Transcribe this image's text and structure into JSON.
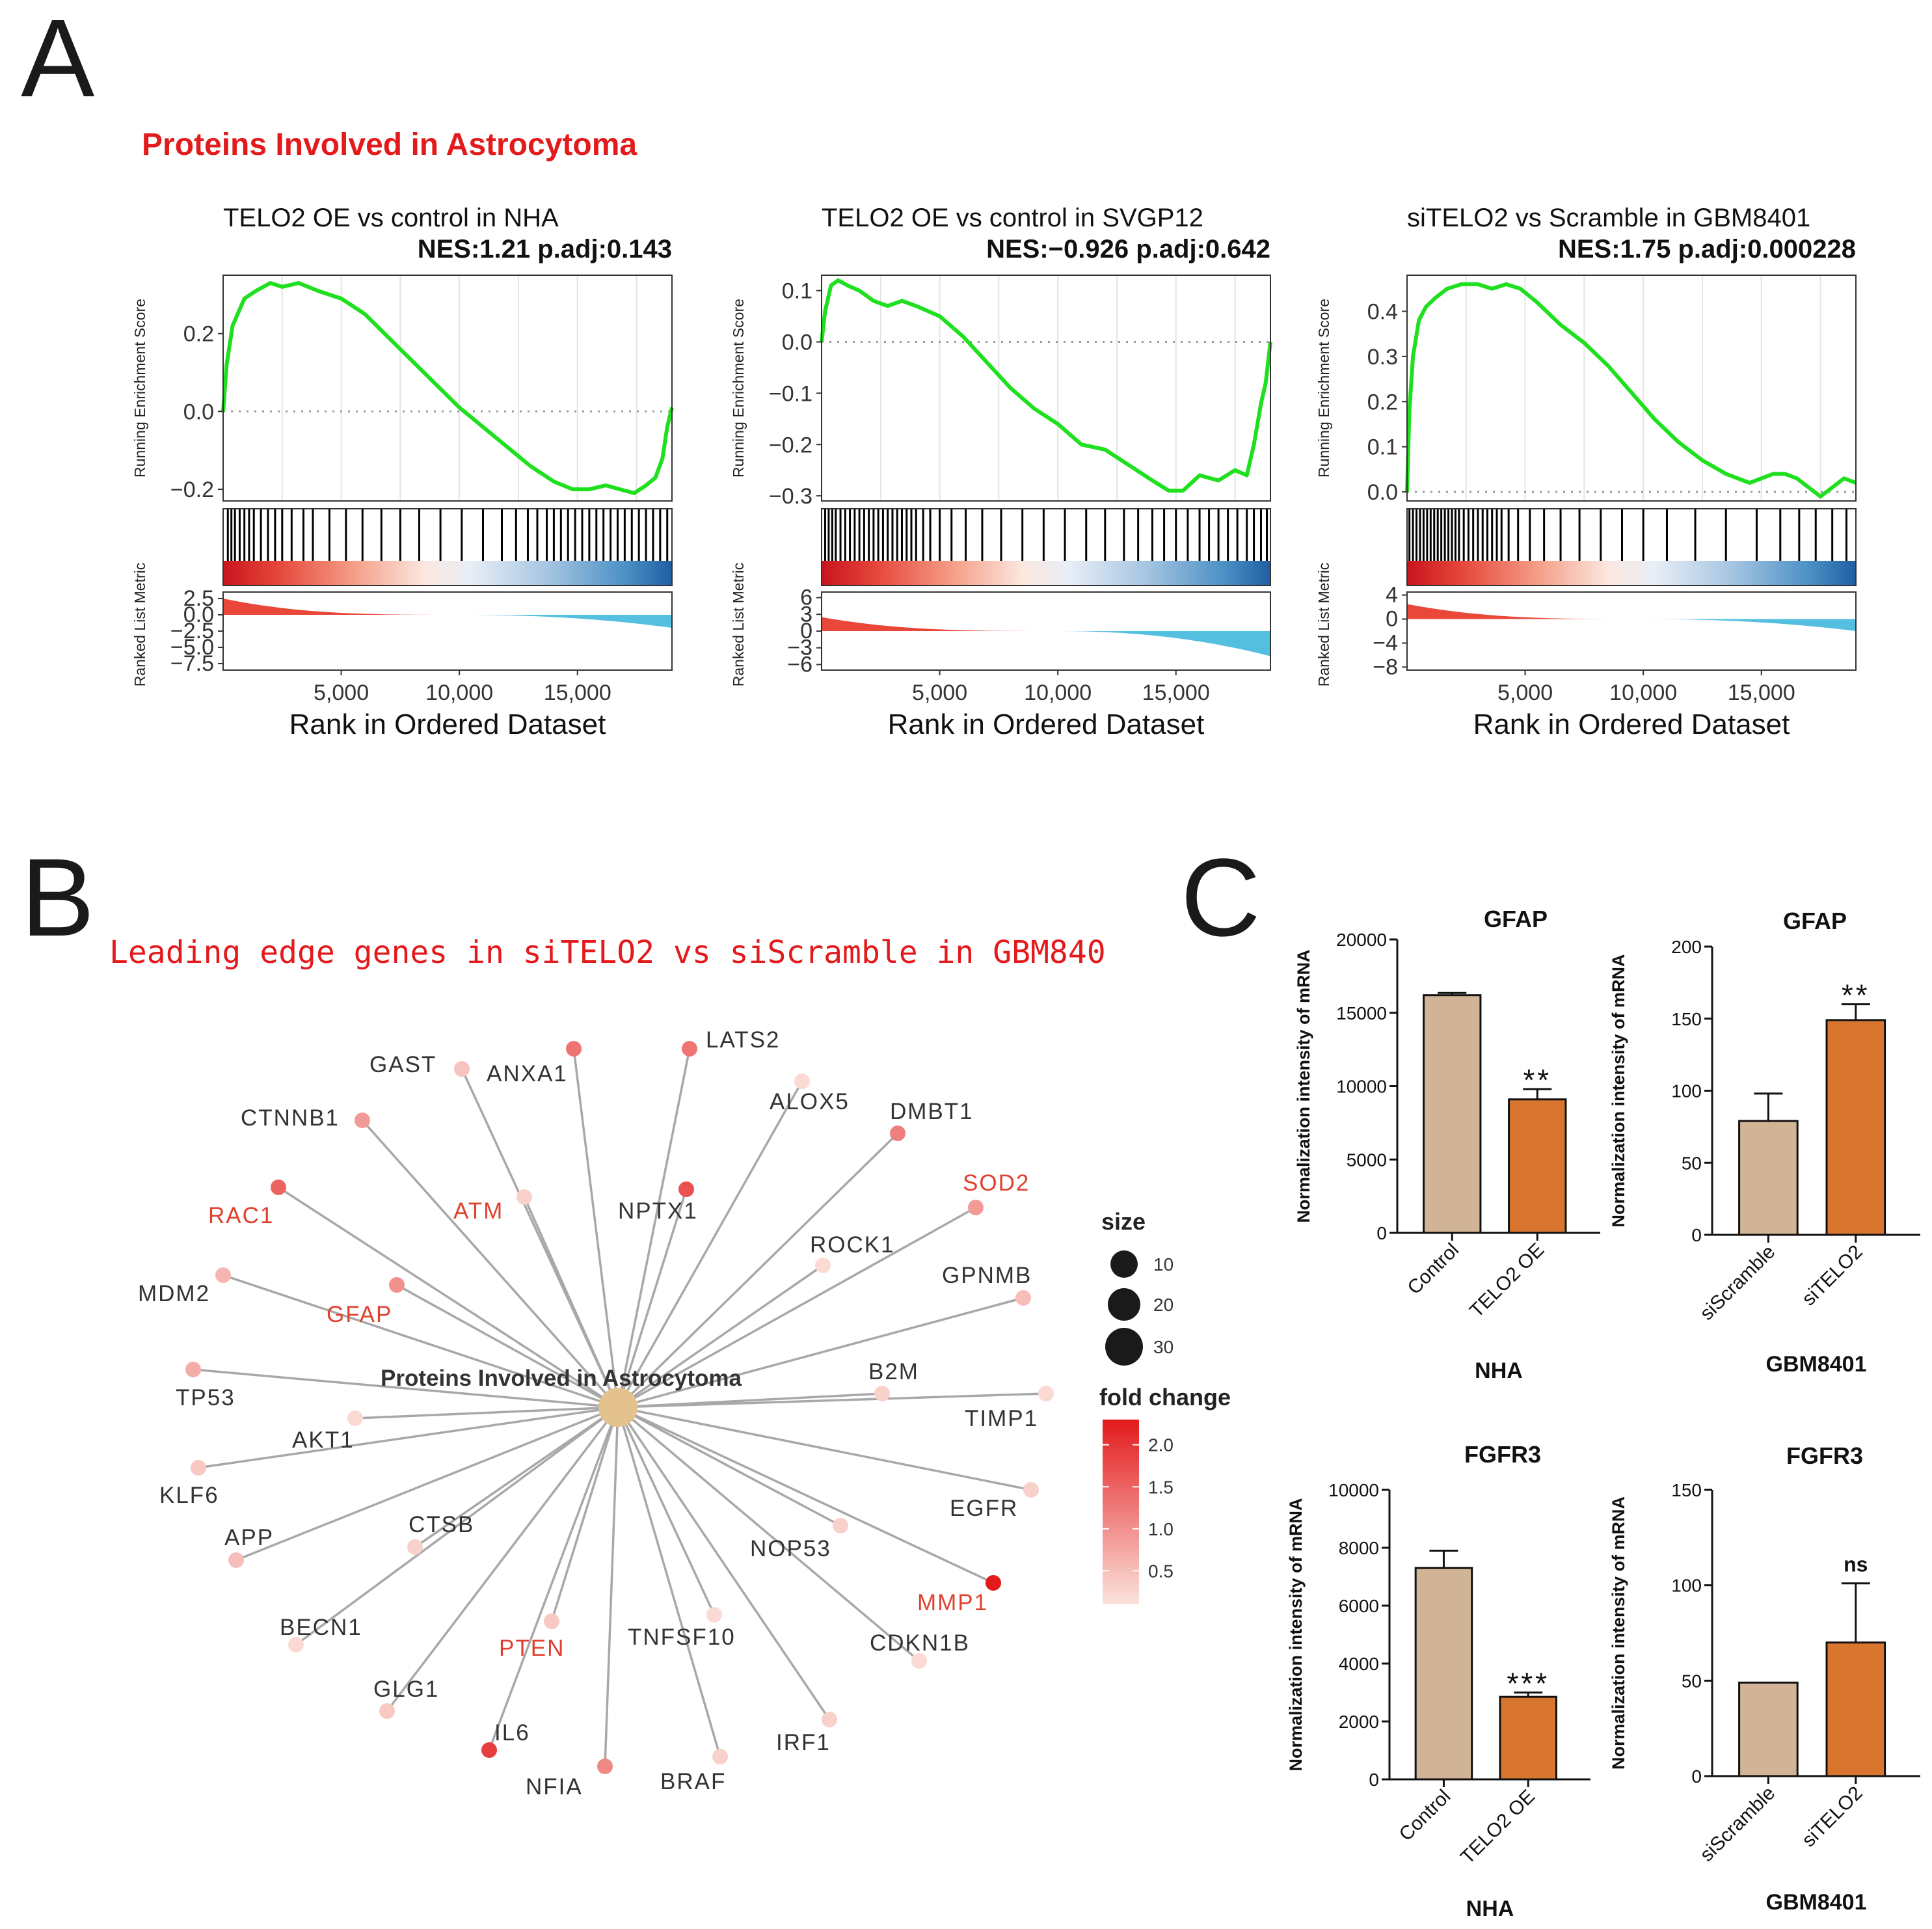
{
  "panel_labels": {
    "a": "A",
    "b": "B",
    "c": "C"
  },
  "gsea_title": "Proteins Involved in Astrocytoma",
  "network_title": "Leading edge genes in siTELO2 vs siScramble in GBM840",
  "chart_data": [
    {
      "type": "line",
      "panel": "A",
      "title": "TELO2 OE vs control in NHA",
      "subtitle": "NES:1.21   p.adj:0.143",
      "xlabel": "Rank in Ordered Dataset",
      "ylabel": "Running Enrichment Score",
      "ylabel_metric": "Ranked List Metric",
      "xlim": [
        0,
        19000
      ],
      "ylim": [
        -0.23,
        0.35
      ],
      "yticks": [
        -0.2,
        0.0,
        0.2
      ],
      "ytick_labels": [
        "−0.2",
        "0.0",
        "0.2"
      ],
      "xticks": [
        5000,
        10000,
        15000
      ],
      "xtick_labels": [
        "5,000",
        "10,000",
        "15,000"
      ],
      "metric_ylim": [
        -8.5,
        3.5
      ],
      "metric_ticks": [
        2.5,
        0.0,
        -2.5,
        -5.0,
        -7.5
      ],
      "metric_tick_labels": [
        "2.5",
        "0.0",
        "−2.5",
        "−5.0",
        "−7.5"
      ],
      "metric_range": [
        2.5,
        -2.0
      ],
      "series": [
        {
          "x": [
            0,
            150,
            400,
            900,
            1400,
            2000,
            2500,
            3200,
            4000,
            5000,
            6000,
            7000,
            8000,
            9000,
            10000,
            11000,
            12000,
            13000,
            14000,
            14800,
            15500,
            16200,
            16800,
            17400,
            17900,
            18300,
            18600,
            18800,
            19000
          ],
          "values": [
            0.0,
            0.12,
            0.22,
            0.29,
            0.31,
            0.33,
            0.32,
            0.33,
            0.31,
            0.29,
            0.25,
            0.19,
            0.13,
            0.07,
            0.01,
            -0.04,
            -0.09,
            -0.14,
            -0.18,
            -0.2,
            -0.2,
            -0.19,
            -0.2,
            -0.21,
            -0.19,
            -0.17,
            -0.12,
            -0.04,
            0.01
          ]
        }
      ],
      "hit_positions": [
        200,
        350,
        500,
        700,
        900,
        1100,
        1300,
        1600,
        1900,
        2200,
        2500,
        2900,
        3400,
        3800,
        4500,
        5200,
        5900,
        6700,
        7500,
        8300,
        9200,
        10100,
        11000,
        11800,
        12400,
        12900,
        13300,
        13700,
        14000,
        14300,
        14600,
        14900,
        15200,
        15500,
        15800,
        16100,
        16400,
        16700,
        17000,
        17300,
        17600,
        17900,
        18200,
        18500,
        18800
      ]
    },
    {
      "type": "line",
      "panel": "A",
      "title": "TELO2 OE vs control in SVGP12",
      "subtitle": "NES:−0.926   p.adj:0.642",
      "xlabel": "Rank in Ordered Dataset",
      "ylabel": "Running Enrichment Score",
      "ylabel_metric": "Ranked List Metric",
      "xlim": [
        0,
        19000
      ],
      "ylim": [
        -0.31,
        0.13
      ],
      "yticks": [
        0.1,
        0.0,
        -0.1,
        -0.2,
        -0.3
      ],
      "ytick_labels": [
        "0.1",
        "0.0",
        "−0.1",
        "−0.2",
        "−0.3"
      ],
      "xticks": [
        5000,
        10000,
        15000
      ],
      "xtick_labels": [
        "5,000",
        "10,000",
        "15,000"
      ],
      "metric_ylim": [
        -7,
        7
      ],
      "metric_ticks": [
        6,
        3,
        0,
        -3,
        -6
      ],
      "metric_tick_labels": [
        "6",
        "3",
        "0",
        "−3",
        "−6"
      ],
      "metric_range": [
        2.5,
        -4.5
      ],
      "series": [
        {
          "x": [
            0,
            150,
            400,
            700,
            1100,
            1600,
            2200,
            2800,
            3400,
            4000,
            5000,
            6000,
            7000,
            8000,
            9000,
            10000,
            11000,
            12000,
            13000,
            14000,
            14700,
            15300,
            16000,
            16800,
            17500,
            18000,
            18300,
            18600,
            18800,
            19000
          ],
          "values": [
            0.0,
            0.06,
            0.11,
            0.12,
            0.11,
            0.1,
            0.08,
            0.07,
            0.08,
            0.07,
            0.05,
            0.01,
            -0.04,
            -0.09,
            -0.13,
            -0.16,
            -0.2,
            -0.21,
            -0.24,
            -0.27,
            -0.29,
            -0.29,
            -0.26,
            -0.27,
            -0.25,
            -0.26,
            -0.2,
            -0.12,
            -0.08,
            0.0
          ]
        }
      ],
      "hit_positions": [
        150,
        300,
        450,
        600,
        800,
        1000,
        1200,
        1400,
        1600,
        1800,
        2000,
        2200,
        2400,
        2600,
        2800,
        3000,
        3200,
        3400,
        3600,
        3800,
        4000,
        4300,
        4600,
        5000,
        5500,
        6100,
        6800,
        7600,
        8500,
        9400,
        10300,
        11200,
        12000,
        12800,
        13400,
        14000,
        14500,
        15000,
        15500,
        16000,
        16400,
        16800,
        17200,
        17600,
        18000,
        18300,
        18600,
        18850
      ]
    },
    {
      "type": "line",
      "panel": "A",
      "title": "siTELO2 vs Scramble in GBM8401",
      "subtitle": "NES:1.75   p.adj:0.000228",
      "xlabel": "Rank in Ordered Dataset",
      "ylabel": "Running Enrichment Score",
      "ylabel_metric": "Ranked List Metric",
      "xlim": [
        0,
        19000
      ],
      "ylim": [
        -0.02,
        0.48
      ],
      "yticks": [
        0.4,
        0.3,
        0.2,
        0.1,
        0.0
      ],
      "ytick_labels": [
        "0.4",
        "0.3",
        "0.2",
        "0.1",
        "0.0"
      ],
      "xticks": [
        5000,
        10000,
        15000
      ],
      "xtick_labels": [
        "5,000",
        "10,000",
        "15,000"
      ],
      "metric_ylim": [
        -8.5,
        4.5
      ],
      "metric_ticks": [
        4,
        0,
        -4,
        -8
      ],
      "metric_tick_labels": [
        "4",
        "0",
        "−4",
        "−8"
      ],
      "metric_range": [
        2.5,
        -2.0
      ],
      "series": [
        {
          "x": [
            0,
            100,
            250,
            500,
            800,
            1200,
            1700,
            2300,
            3000,
            3600,
            4200,
            4800,
            5500,
            6500,
            7500,
            8500,
            9500,
            10500,
            11500,
            12500,
            13500,
            14500,
            15000,
            15500,
            16000,
            16500,
            17000,
            17500,
            18000,
            18500,
            19000
          ],
          "values": [
            0.0,
            0.18,
            0.3,
            0.38,
            0.41,
            0.43,
            0.45,
            0.46,
            0.46,
            0.45,
            0.46,
            0.45,
            0.42,
            0.37,
            0.33,
            0.28,
            0.22,
            0.16,
            0.11,
            0.07,
            0.04,
            0.02,
            0.03,
            0.04,
            0.04,
            0.03,
            0.01,
            -0.01,
            0.01,
            0.03,
            0.02
          ]
        }
      ],
      "hit_positions": [
        100,
        250,
        400,
        550,
        700,
        850,
        1000,
        1150,
        1300,
        1450,
        1600,
        1750,
        1900,
        2050,
        2200,
        2400,
        2600,
        2800,
        3000,
        3200,
        3400,
        3600,
        3800,
        4000,
        4300,
        4700,
        5200,
        5800,
        6500,
        7300,
        8200,
        9100,
        10000,
        11000,
        12200,
        13500,
        14800,
        15800,
        16600,
        17300,
        18000,
        18600
      ]
    },
    {
      "type": "bar",
      "panel": "C",
      "title": "GFAP",
      "xlabel": "NHA",
      "ylabel": "Normalization intensity of mRNA",
      "categories": [
        "Control",
        "TELO2 OE"
      ],
      "values": [
        16200,
        9100
      ],
      "errors": [
        150,
        700
      ],
      "significance": "**",
      "ylim": [
        0,
        20000
      ],
      "yticks": [
        0,
        5000,
        10000,
        15000,
        20000
      ],
      "ytick_labels": [
        "0",
        "5000",
        "10000",
        "15000",
        "20000"
      ]
    },
    {
      "type": "bar",
      "panel": "C",
      "title": "GFAP",
      "xlabel": "GBM8401",
      "ylabel": "Normalization intensity of mRNA",
      "categories": [
        "siScramble",
        "siTELO2"
      ],
      "values": [
        79,
        149
      ],
      "errors": [
        19,
        11
      ],
      "significance": "**",
      "ylim": [
        0,
        200
      ],
      "yticks": [
        0,
        50,
        100,
        150,
        200
      ],
      "ytick_labels": [
        "0",
        "50",
        "100",
        "150",
        "200"
      ]
    },
    {
      "type": "bar",
      "panel": "C",
      "title": "FGFR3",
      "xlabel": "NHA",
      "ylabel": "Normalization intensity of mRNA",
      "categories": [
        "Control",
        "TELO2 OE"
      ],
      "values": [
        7300,
        2850
      ],
      "errors": [
        600,
        150
      ],
      "significance": "***",
      "ylim": [
        0,
        10000
      ],
      "yticks": [
        0,
        2000,
        4000,
        6000,
        8000,
        10000
      ],
      "ytick_labels": [
        "0",
        "2000",
        "4000",
        "6000",
        "8000",
        "10000"
      ]
    },
    {
      "type": "bar",
      "panel": "C",
      "title": "FGFR3",
      "xlabel": "GBM8401",
      "ylabel": "Normalization intensity of mRNA",
      "categories": [
        "siScramble",
        "siTELO2"
      ],
      "values": [
        49,
        70
      ],
      "errors": [
        0,
        31
      ],
      "significance": "ns",
      "ylim": [
        0,
        150
      ],
      "yticks": [
        0,
        50,
        100,
        150
      ],
      "ytick_labels": [
        "0",
        "50",
        "100",
        "150"
      ]
    }
  ],
  "network": {
    "hub_label": "Proteins Involved in Astrocytoma",
    "nodes": [
      {
        "gene": "GAST",
        "fc": 0.45,
        "highlight": false
      },
      {
        "gene": "ANXA1",
        "fc": 1.3,
        "highlight": false
      },
      {
        "gene": "LATS2",
        "fc": 1.3,
        "highlight": false
      },
      {
        "gene": "ALOX5",
        "fc": 0.2,
        "highlight": false
      },
      {
        "gene": "CTNNB1",
        "fc": 0.9,
        "highlight": false
      },
      {
        "gene": "DMBT1",
        "fc": 1.2,
        "highlight": false
      },
      {
        "gene": "RAC1",
        "fc": 1.5,
        "highlight": true
      },
      {
        "gene": "ATM",
        "fc": 0.3,
        "highlight": true
      },
      {
        "gene": "NPTX1",
        "fc": 1.7,
        "highlight": false
      },
      {
        "gene": "SOD2",
        "fc": 0.9,
        "highlight": true
      },
      {
        "gene": "ROCK1",
        "fc": 0.2,
        "highlight": false
      },
      {
        "gene": "MDM2",
        "fc": 0.6,
        "highlight": false
      },
      {
        "gene": "GFAP",
        "fc": 1.0,
        "highlight": true
      },
      {
        "gene": "GPNMB",
        "fc": 0.5,
        "highlight": false
      },
      {
        "gene": "TP53",
        "fc": 0.7,
        "highlight": false
      },
      {
        "gene": "B2M",
        "fc": 0.3,
        "highlight": false
      },
      {
        "gene": "TIMP1",
        "fc": 0.2,
        "highlight": false
      },
      {
        "gene": "AKT1",
        "fc": 0.2,
        "highlight": false
      },
      {
        "gene": "KLF6",
        "fc": 0.4,
        "highlight": false
      },
      {
        "gene": "EGFR",
        "fc": 0.3,
        "highlight": false
      },
      {
        "gene": "APP",
        "fc": 0.5,
        "highlight": false
      },
      {
        "gene": "CTSB",
        "fc": 0.3,
        "highlight": false
      },
      {
        "gene": "NOP53",
        "fc": 0.3,
        "highlight": false
      },
      {
        "gene": "MMP1",
        "fc": 2.3,
        "highlight": true
      },
      {
        "gene": "BECN1",
        "fc": 0.2,
        "highlight": false
      },
      {
        "gene": "PTEN",
        "fc": 0.4,
        "highlight": true
      },
      {
        "gene": "TNFSF10",
        "fc": 0.2,
        "highlight": false
      },
      {
        "gene": "CDKN1B",
        "fc": 0.2,
        "highlight": false
      },
      {
        "gene": "GLG1",
        "fc": 0.4,
        "highlight": false
      },
      {
        "gene": "IL6",
        "fc": 1.9,
        "highlight": false
      },
      {
        "gene": "NFIA",
        "fc": 1.1,
        "highlight": false
      },
      {
        "gene": "BRAF",
        "fc": 0.3,
        "highlight": false
      },
      {
        "gene": "IRF1",
        "fc": 0.3,
        "highlight": false
      }
    ],
    "legend": {
      "size_title": "size",
      "size_values": [
        10,
        20,
        30
      ],
      "color_title": "fold change",
      "color_ticks": [
        2.0,
        1.5,
        1.0,
        0.5
      ],
      "color_tick_labels": [
        "2.0",
        "1.5",
        "1.0",
        "0.5"
      ],
      "color_range": [
        0.1,
        2.3
      ],
      "color_low": "#fbe3dc",
      "color_high": "#e31a1c"
    }
  },
  "colors": {
    "es_line": "#1fe01f",
    "metric_pos": "#e8473a",
    "metric_neg": "#55bfe0",
    "bar_control": "#d1b496",
    "bar_treatment": "#d8762f",
    "node_hub": "#e3c28d",
    "edge": "#a8a8a8",
    "title_red": "#e31a1c"
  }
}
